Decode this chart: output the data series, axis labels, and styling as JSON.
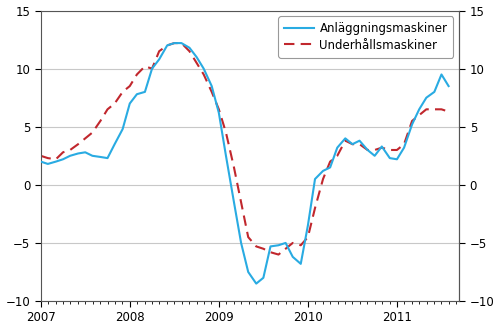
{
  "anlaggning": {
    "label": "Anläggningsmaskiner",
    "color": "#29ABE2",
    "linewidth": 1.5,
    "linestyle": "-"
  },
  "underhall": {
    "label": "Underhållsmaskiner",
    "color": "#C1272D",
    "linewidth": 1.5,
    "linestyle": "--"
  },
  "ylim": [
    -10,
    15
  ],
  "yticks": [
    -10,
    -5,
    0,
    5,
    10,
    15
  ],
  "xlim_start": 2007.0,
  "xlim_end": 2011.7,
  "xtick_labels": [
    "2007",
    "2008",
    "2009",
    "2010",
    "2011"
  ],
  "xtick_positions": [
    2007.0,
    2008.0,
    2009.0,
    2010.0,
    2011.0
  ],
  "anlaggning_x": [
    2007.0,
    2007.08,
    2007.17,
    2007.25,
    2007.33,
    2007.42,
    2007.5,
    2007.58,
    2007.67,
    2007.75,
    2007.83,
    2007.92,
    2008.0,
    2008.08,
    2008.17,
    2008.25,
    2008.33,
    2008.42,
    2008.5,
    2008.58,
    2008.67,
    2008.75,
    2008.83,
    2008.92,
    2009.0,
    2009.08,
    2009.17,
    2009.25,
    2009.33,
    2009.42,
    2009.5,
    2009.58,
    2009.67,
    2009.75,
    2009.83,
    2009.92,
    2010.0,
    2010.08,
    2010.17,
    2010.25,
    2010.33,
    2010.42,
    2010.5,
    2010.58,
    2010.67,
    2010.75,
    2010.83,
    2010.92,
    2011.0,
    2011.08,
    2011.17,
    2011.25,
    2011.33,
    2011.42,
    2011.5,
    2011.58
  ],
  "anlaggning_y": [
    2.0,
    1.8,
    2.0,
    2.2,
    2.5,
    2.7,
    2.8,
    2.5,
    2.4,
    2.3,
    3.5,
    4.8,
    7.0,
    7.8,
    8.0,
    10.0,
    10.8,
    12.0,
    12.2,
    12.2,
    11.8,
    11.0,
    10.0,
    8.5,
    6.2,
    2.5,
    -1.5,
    -5.0,
    -7.5,
    -8.5,
    -8.0,
    -5.3,
    -5.2,
    -5.0,
    -6.2,
    -6.8,
    -3.5,
    0.5,
    1.2,
    1.5,
    3.2,
    4.0,
    3.5,
    3.8,
    3.0,
    2.5,
    3.3,
    2.3,
    2.2,
    3.2,
    5.2,
    6.5,
    7.5,
    8.0,
    9.5,
    8.5
  ],
  "underhall_x": [
    2007.0,
    2007.08,
    2007.17,
    2007.25,
    2007.33,
    2007.42,
    2007.5,
    2007.58,
    2007.67,
    2007.75,
    2007.83,
    2007.92,
    2008.0,
    2008.08,
    2008.17,
    2008.25,
    2008.33,
    2008.42,
    2008.5,
    2008.58,
    2008.67,
    2008.75,
    2008.83,
    2008.92,
    2009.0,
    2009.08,
    2009.17,
    2009.25,
    2009.33,
    2009.42,
    2009.5,
    2009.58,
    2009.67,
    2009.75,
    2009.83,
    2009.92,
    2010.0,
    2010.08,
    2010.17,
    2010.25,
    2010.33,
    2010.42,
    2010.5,
    2010.58,
    2010.67,
    2010.75,
    2010.83,
    2010.92,
    2011.0,
    2011.08,
    2011.17,
    2011.25,
    2011.33,
    2011.42,
    2011.5,
    2011.58
  ],
  "underhall_y": [
    2.5,
    2.3,
    2.2,
    2.8,
    3.0,
    3.5,
    4.0,
    4.5,
    5.5,
    6.5,
    7.0,
    8.0,
    8.5,
    9.5,
    10.2,
    10.0,
    11.5,
    12.0,
    12.2,
    12.2,
    11.5,
    10.5,
    9.5,
    8.0,
    6.5,
    4.5,
    1.5,
    -1.5,
    -4.5,
    -5.3,
    -5.5,
    -5.8,
    -6.0,
    -5.5,
    -5.0,
    -5.2,
    -4.5,
    -2.0,
    0.5,
    2.0,
    2.5,
    3.8,
    3.5,
    3.5,
    3.0,
    3.0,
    3.2,
    3.0,
    3.0,
    3.5,
    5.5,
    6.0,
    6.5,
    6.5,
    6.5,
    6.3
  ],
  "grid_color": "#c8c8c8",
  "bg_color": "#ffffff",
  "legend_fontsize": 8.5,
  "tick_fontsize": 8.5
}
